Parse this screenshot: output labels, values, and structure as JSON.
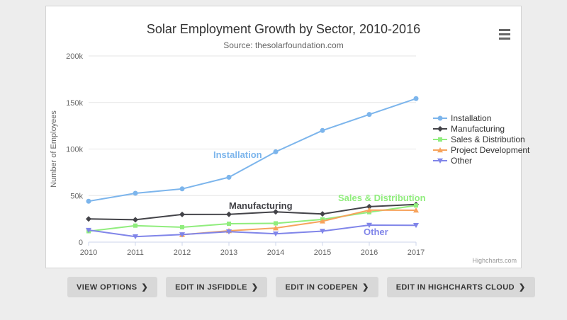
{
  "chart_card": {
    "credit": "Highcharts.com",
    "context_menu_icon": "hamburger-icon"
  },
  "buttons": [
    {
      "label": "VIEW OPTIONS",
      "chevron": "❯"
    },
    {
      "label": "EDIT IN JSFIDDLE",
      "chevron": "❯"
    },
    {
      "label": "EDIT IN CODEPEN",
      "chevron": "❯"
    },
    {
      "label": "EDIT IN HIGHCHARTS CLOUD",
      "chevron": "❯"
    }
  ],
  "chart_data": {
    "type": "line",
    "title": "Solar Employment Growth by Sector, 2010-2016",
    "subtitle": "Source: thesolarfoundation.com",
    "xlabel": "",
    "ylabel": "Number of Employees",
    "x": [
      2010,
      2011,
      2012,
      2013,
      2014,
      2015,
      2016,
      2017
    ],
    "ylim": [
      0,
      200000
    ],
    "yticks": [
      0,
      50000,
      100000,
      150000,
      200000
    ],
    "ytick_labels": [
      "0",
      "50k",
      "100k",
      "150k",
      "200k"
    ],
    "grid": true,
    "legend_position": "right",
    "series": [
      {
        "name": "Installation",
        "color": "#7cb5ec",
        "marker": "circle",
        "values": [
          43934,
          52503,
          57177,
          69658,
          97031,
          119931,
          137133,
          154175
        ]
      },
      {
        "name": "Manufacturing",
        "color": "#434348",
        "marker": "diamond",
        "values": [
          24916,
          24064,
          29742,
          29851,
          32490,
          30282,
          38121,
          40434
        ]
      },
      {
        "name": "Sales & Distribution",
        "color": "#90ed7d",
        "marker": "square",
        "values": [
          11744,
          17722,
          16005,
          19771,
          20185,
          24377,
          32147,
          39387
        ]
      },
      {
        "name": "Project Development",
        "color": "#f7a35c",
        "marker": "triangle",
        "values": [
          null,
          null,
          7988,
          12169,
          15112,
          22452,
          34400,
          34227
        ]
      },
      {
        "name": "Other",
        "color": "#8085e9",
        "marker": "triangle-down",
        "values": [
          12908,
          5948,
          8105,
          11248,
          8989,
          11816,
          18274,
          18111
        ]
      }
    ]
  }
}
